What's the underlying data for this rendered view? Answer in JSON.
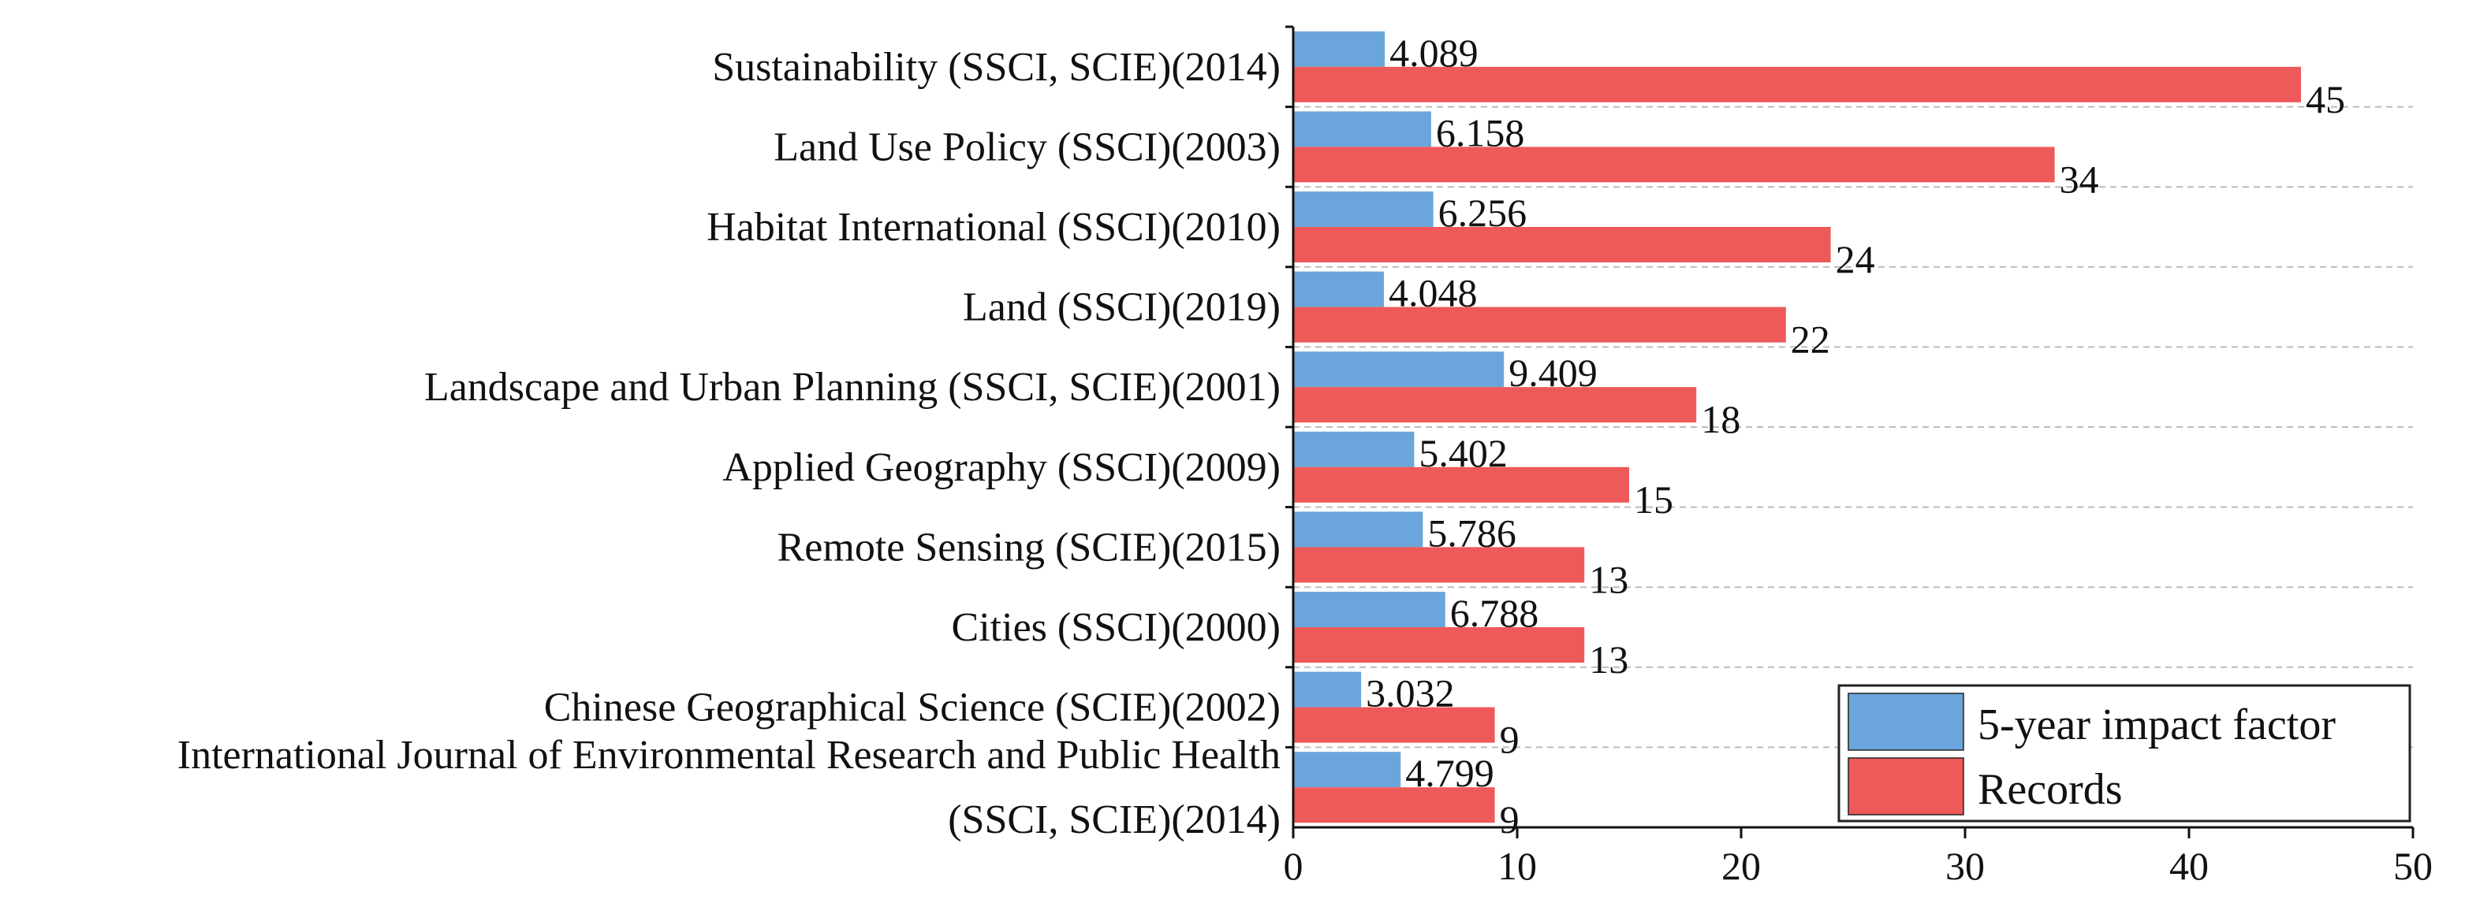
{
  "chart_data": {
    "type": "bar",
    "orientation": "horizontal",
    "title": "",
    "xlabel": "",
    "ylabel": "",
    "xlim": [
      0,
      50
    ],
    "xticks": [
      0,
      10,
      20,
      30,
      40,
      50
    ],
    "grid": "horizontal dashed",
    "legend_position": "bottom-right",
    "categories": [
      [
        "Sustainability (SSCI, SCIE)(2014)"
      ],
      [
        "Land Use Policy (SSCI)(2003)"
      ],
      [
        "Habitat International (SSCI)(2010)"
      ],
      [
        "Land (SSCI)(2019)"
      ],
      [
        "Landscape and Urban Planning (SSCI, SCIE)(2001)"
      ],
      [
        "Applied Geography (SSCI)(2009)"
      ],
      [
        "Remote Sensing (SCIE)(2015)"
      ],
      [
        "Cities (SSCI)(2000)"
      ],
      [
        "Chinese Geographical Science (SCIE)(2002)"
      ],
      [
        "International Journal of Environmental Research and Public Health",
        "(SSCI, SCIE)(2014)"
      ]
    ],
    "series": [
      {
        "name": "5-year impact factor",
        "color": "#6aa6db",
        "values": [
          4.089,
          6.158,
          6.256,
          4.048,
          9.409,
          5.402,
          5.786,
          6.788,
          3.032,
          4.799
        ],
        "labels": [
          "4.089",
          "6.158",
          "6.256",
          "4.048",
          "9.409",
          "5.402",
          "5.786",
          "6.788",
          "3.032",
          "4.799"
        ]
      },
      {
        "name": "Records",
        "color": "#ee5959",
        "values": [
          45,
          34,
          24,
          22,
          18,
          15,
          13,
          13,
          9,
          9
        ],
        "labels": [
          "45",
          "34",
          "24",
          "22",
          "18",
          "15",
          "13",
          "13",
          "9",
          "9"
        ]
      }
    ]
  }
}
